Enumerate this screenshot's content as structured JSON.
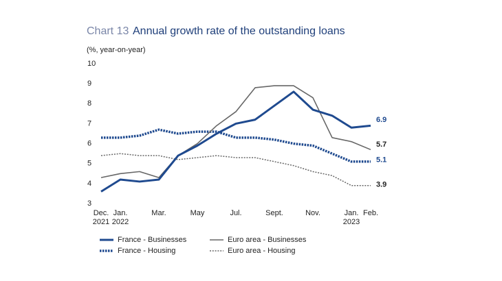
{
  "chart_data": {
    "type": "line",
    "chart_label": "Chart 13",
    "title": "Annual growth rate of the outstanding loans",
    "subtitle": "(%, year-on-year)",
    "categories": [
      "Dec.\n2021",
      "Jan.\n2022",
      null,
      "Mar.",
      null,
      "May",
      null,
      "Jul.",
      null,
      "Sept.",
      null,
      "Nov.",
      null,
      "Jan.\n2023",
      "Feb."
    ],
    "ylim": [
      3,
      10
    ],
    "yticks": [
      3,
      4,
      5,
      6,
      7,
      8,
      9,
      10
    ],
    "grid": false,
    "series": [
      {
        "name": "France - Businesses",
        "color": "#1f4a8f",
        "line_style": "solid",
        "line_width": 3,
        "values": [
          3.6,
          4.2,
          4.1,
          4.2,
          5.4,
          5.9,
          6.5,
          7.0,
          7.2,
          7.9,
          8.6,
          7.7,
          7.4,
          6.8,
          6.9
        ]
      },
      {
        "name": "Euro area - Businesses",
        "color": "#666666",
        "line_style": "solid",
        "line_width": 1.6,
        "values": [
          4.3,
          4.5,
          4.6,
          4.3,
          5.4,
          6.0,
          6.9,
          7.6,
          8.8,
          8.9,
          8.9,
          8.3,
          6.3,
          6.1,
          5.7
        ]
      },
      {
        "name": "France - Housing",
        "color": "#1f4a8f",
        "line_style": "dotted",
        "line_width": 3.5,
        "values": [
          6.3,
          6.3,
          6.4,
          6.7,
          6.5,
          6.6,
          6.6,
          6.3,
          6.3,
          6.2,
          6.0,
          5.9,
          5.5,
          5.1,
          5.1
        ]
      },
      {
        "name": "Euro area - Housing",
        "color": "#666666",
        "line_style": "dotted",
        "line_width": 1.5,
        "values": [
          5.4,
          5.5,
          5.4,
          5.4,
          5.2,
          5.3,
          5.4,
          5.3,
          5.3,
          5.1,
          4.9,
          4.6,
          4.4,
          3.9,
          3.9
        ]
      }
    ]
  }
}
